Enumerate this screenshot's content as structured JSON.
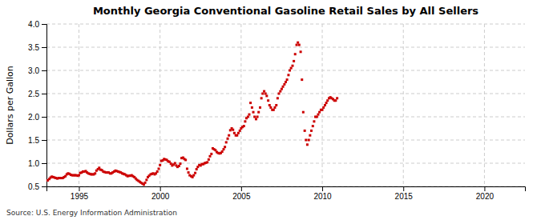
{
  "chart_data": {
    "type": "scatter",
    "title": "Monthly Georgia Conventional Gasoline Retail Sales by All Sellers",
    "y_label": "Dollars per Gallon",
    "annotations": [
      "Source: U.S. Energy Information Administration"
    ],
    "color": "#CC0000",
    "marker": "square",
    "grid": true,
    "xlim": [
      1993.0,
      2022.5
    ],
    "xticks": [
      1995,
      2000,
      2005,
      2010,
      2015,
      2020
    ],
    "ylim": [
      0.5,
      4.0
    ],
    "yticks": [
      0.5,
      {
        "value": 1.0,
        "label": "1.0"
      },
      1.5,
      {
        "value": 2.0,
        "label": "2.0"
      },
      2.5,
      {
        "value": 3.0,
        "label": "3.0"
      },
      3.5,
      {
        "value": 4.0,
        "label": "4.0"
      }
    ],
    "x": [
      1993.08,
      1993.17,
      1993.25,
      1993.33,
      1993.42,
      1993.5,
      1993.58,
      1993.67,
      1993.75,
      1993.83,
      1993.92,
      1994.0,
      1994.08,
      1994.17,
      1994.25,
      1994.33,
      1994.42,
      1994.5,
      1994.58,
      1994.67,
      1994.75,
      1994.83,
      1994.92,
      1995.0,
      1995.08,
      1995.17,
      1995.25,
      1995.33,
      1995.42,
      1995.5,
      1995.58,
      1995.67,
      1995.75,
      1995.83,
      1995.92,
      1996.0,
      1996.08,
      1996.17,
      1996.25,
      1996.33,
      1996.42,
      1996.5,
      1996.58,
      1996.67,
      1996.75,
      1996.83,
      1996.92,
      1997.0,
      1997.08,
      1997.17,
      1997.25,
      1997.33,
      1997.42,
      1997.5,
      1997.58,
      1997.67,
      1997.75,
      1997.83,
      1997.92,
      1998.0,
      1998.08,
      1998.17,
      1998.25,
      1998.33,
      1998.42,
      1998.5,
      1998.58,
      1998.67,
      1998.75,
      1998.83,
      1998.92,
      1999.0,
      1999.08,
      1999.17,
      1999.25,
      1999.33,
      1999.42,
      1999.5,
      1999.58,
      1999.67,
      1999.75,
      1999.83,
      1999.92,
      2000.0,
      2000.08,
      2000.17,
      2000.25,
      2000.33,
      2000.42,
      2000.5,
      2000.58,
      2000.67,
      2000.75,
      2000.83,
      2000.92,
      2001.0,
      2001.08,
      2001.17,
      2001.25,
      2001.33,
      2001.42,
      2001.5,
      2001.58,
      2001.67,
      2001.75,
      2001.83,
      2001.92,
      2002.0,
      2002.08,
      2002.17,
      2002.25,
      2002.33,
      2002.42,
      2002.5,
      2002.58,
      2002.67,
      2002.75,
      2002.83,
      2002.92,
      2003.0,
      2003.08,
      2003.17,
      2003.25,
      2003.33,
      2003.42,
      2003.5,
      2003.58,
      2003.67,
      2003.75,
      2003.83,
      2003.92,
      2004.0,
      2004.08,
      2004.17,
      2004.25,
      2004.33,
      2004.42,
      2004.5,
      2004.58,
      2004.67,
      2004.75,
      2004.83,
      2004.92,
      2005.0,
      2005.08,
      2005.17,
      2005.25,
      2005.33,
      2005.42,
      2005.5,
      2005.58,
      2005.67,
      2005.75,
      2005.83,
      2005.92,
      2006.0,
      2006.08,
      2006.17,
      2006.25,
      2006.33,
      2006.42,
      2006.5,
      2006.58,
      2006.67,
      2006.75,
      2006.83,
      2006.92,
      2007.0,
      2007.08,
      2007.17,
      2007.25,
      2007.33,
      2007.42,
      2007.5,
      2007.58,
      2007.67,
      2007.75,
      2007.83,
      2007.92,
      2008.0,
      2008.08,
      2008.17,
      2008.25,
      2008.33,
      2008.42,
      2008.5,
      2008.58,
      2008.67,
      2008.75,
      2008.83,
      2008.92,
      2009.0,
      2009.08,
      2009.17,
      2009.25,
      2009.33,
      2009.42,
      2009.5,
      2009.58,
      2009.67,
      2009.75,
      2009.83,
      2009.92,
      2010.0,
      2010.08,
      2010.17,
      2010.25,
      2010.33,
      2010.42,
      2010.5,
      2010.58,
      2010.67,
      2010.75,
      2010.83,
      2010.92
    ],
    "values": [
      0.63,
      0.66,
      0.69,
      0.71,
      0.7,
      0.69,
      0.68,
      0.67,
      0.68,
      0.68,
      0.68,
      0.68,
      0.7,
      0.72,
      0.76,
      0.78,
      0.77,
      0.75,
      0.74,
      0.74,
      0.74,
      0.74,
      0.73,
      0.74,
      0.79,
      0.8,
      0.82,
      0.82,
      0.83,
      0.8,
      0.78,
      0.77,
      0.76,
      0.76,
      0.76,
      0.78,
      0.84,
      0.87,
      0.9,
      0.86,
      0.85,
      0.82,
      0.81,
      0.8,
      0.8,
      0.8,
      0.78,
      0.78,
      0.8,
      0.82,
      0.84,
      0.83,
      0.82,
      0.81,
      0.8,
      0.78,
      0.77,
      0.76,
      0.74,
      0.72,
      0.73,
      0.73,
      0.74,
      0.72,
      0.7,
      0.67,
      0.64,
      0.62,
      0.6,
      0.58,
      0.56,
      0.54,
      0.58,
      0.64,
      0.7,
      0.73,
      0.76,
      0.77,
      0.78,
      0.76,
      0.78,
      0.82,
      0.88,
      0.96,
      1.05,
      1.06,
      1.09,
      1.08,
      1.07,
      1.04,
      1.03,
      0.99,
      0.95,
      0.97,
      1.0,
      0.95,
      0.92,
      0.94,
      0.99,
      1.11,
      1.12,
      1.09,
      1.07,
      0.88,
      0.8,
      0.74,
      0.72,
      0.7,
      0.74,
      0.79,
      0.87,
      0.92,
      0.96,
      0.95,
      0.98,
      0.98,
      1.0,
      1.01,
      1.02,
      1.08,
      1.15,
      1.2,
      1.32,
      1.3,
      1.28,
      1.24,
      1.22,
      1.21,
      1.22,
      1.25,
      1.3,
      1.35,
      1.45,
      1.53,
      1.6,
      1.71,
      1.75,
      1.72,
      1.65,
      1.6,
      1.6,
      1.65,
      1.7,
      1.75,
      1.78,
      1.8,
      1.9,
      1.97,
      2.0,
      2.05,
      2.3,
      2.2,
      2.1,
      2.0,
      1.95,
      2.0,
      2.1,
      2.2,
      2.4,
      2.5,
      2.55,
      2.5,
      2.45,
      2.35,
      2.25,
      2.2,
      2.15,
      2.15,
      2.2,
      2.25,
      2.4,
      2.5,
      2.55,
      2.6,
      2.65,
      2.7,
      2.75,
      2.8,
      2.9,
      3.0,
      3.05,
      3.1,
      3.2,
      3.35,
      3.55,
      3.6,
      3.55,
      3.4,
      2.8,
      2.1,
      1.7,
      1.5,
      1.4,
      1.5,
      1.6,
      1.7,
      1.8,
      1.9,
      2.0,
      2.0,
      2.05,
      2.1,
      2.15,
      2.15,
      2.2,
      2.25,
      2.3,
      2.35,
      2.4,
      2.42,
      2.4,
      2.38,
      2.35,
      2.35,
      2.4
    ]
  }
}
